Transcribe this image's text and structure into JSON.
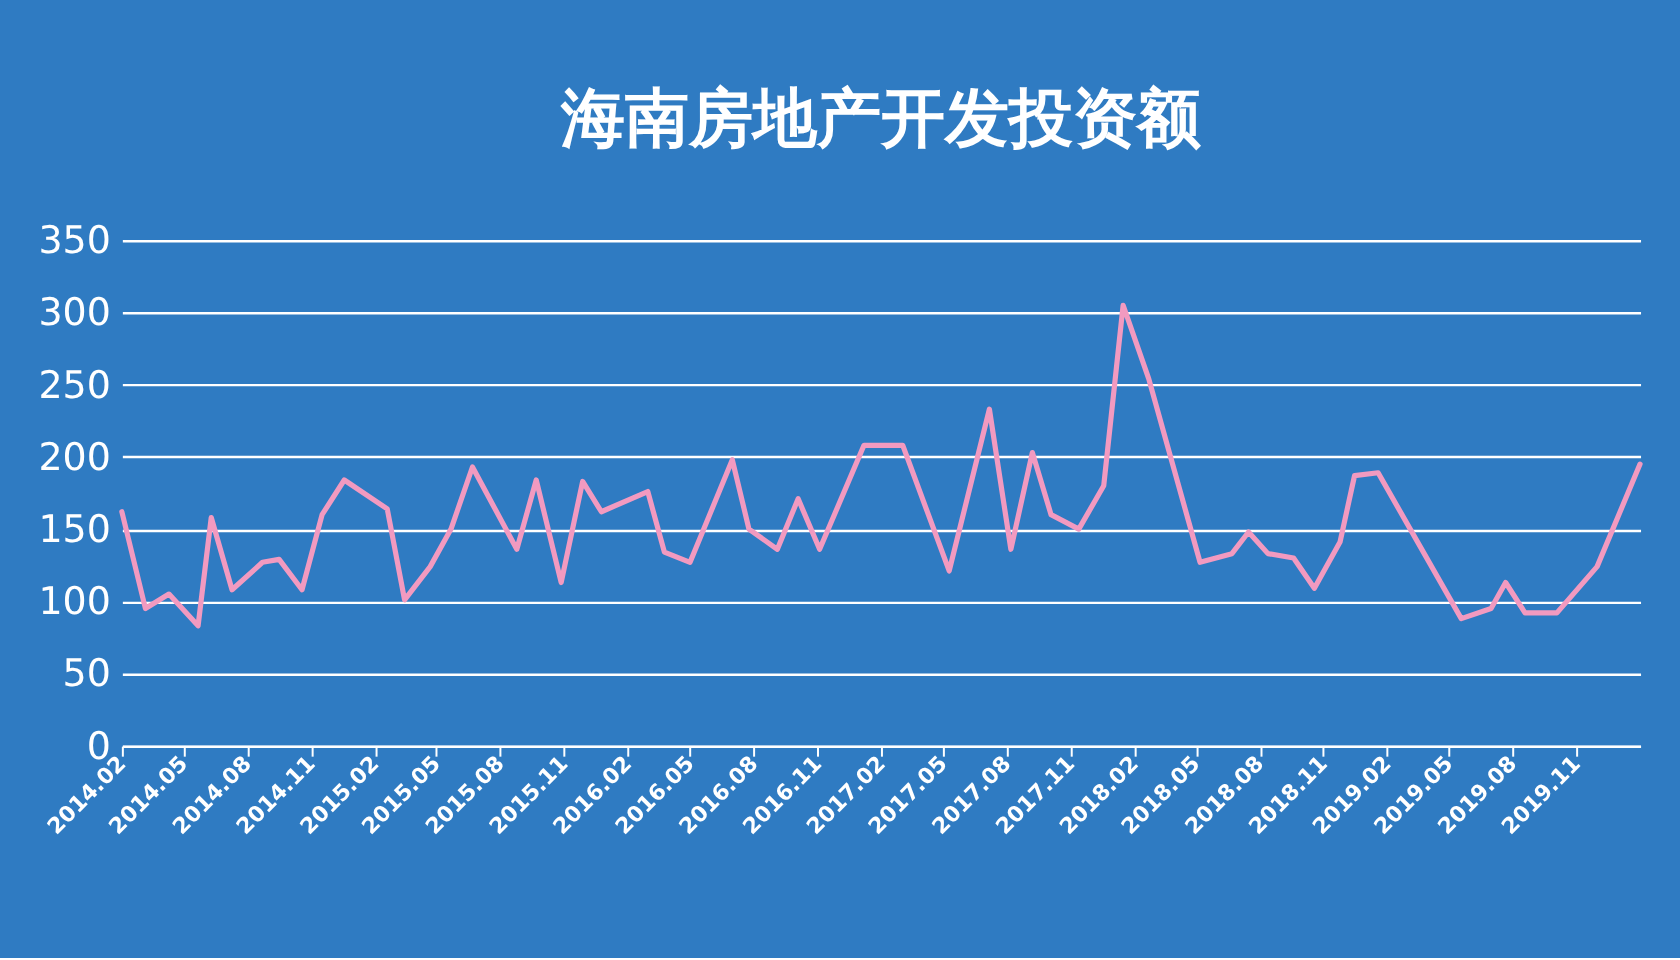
{
  "chart_data": {
    "type": "line",
    "title": "海南房地产开发投资额",
    "x": [
      "2014-02-01",
      "2014-03-07",
      "2014-04-10",
      "2014-05-22",
      "2014-06-10",
      "2014-07-10",
      "2014-08-23",
      "2014-09-16",
      "2014-10-19",
      "2014-11-17",
      "2014-12-19",
      "2015-02-19",
      "2015-03-16",
      "2015-04-22",
      "2015-05-22",
      "2015-06-22",
      "2015-08-25",
      "2015-09-22",
      "2015-10-28",
      "2015-11-28",
      "2015-12-25",
      "2016-03-01",
      "2016-03-25",
      "2016-05-01",
      "2016-07-01",
      "2016-07-25",
      "2016-09-04",
      "2016-10-04",
      "2016-11-04",
      "2017-01-07",
      "2017-03-04",
      "2017-05-10",
      "2017-07-07",
      "2017-08-07",
      "2017-09-07",
      "2017-10-04",
      "2017-11-13",
      "2017-12-19",
      "2018-01-16",
      "2018-02-22",
      "2018-05-07",
      "2018-06-22",
      "2018-07-16",
      "2018-08-13",
      "2018-09-19",
      "2018-10-19",
      "2018-11-25",
      "2018-12-16",
      "2019-01-19",
      "2019-05-19",
      "2019-07-01",
      "2019-07-22",
      "2019-08-19",
      "2019-10-04",
      "2019-12-01",
      "2020-02-01"
    ],
    "series": [
      {
        "color": "#f29ac0",
        "values": [
          162,
          95,
          105,
          83,
          158,
          108,
          127,
          129,
          108,
          160,
          184,
          164,
          101,
          124,
          150,
          193,
          136,
          184,
          113,
          183,
          162,
          176,
          134,
          127,
          198,
          150,
          136,
          171,
          136,
          208,
          208,
          121,
          233,
          136,
          203,
          160,
          150,
          180,
          305,
          254,
          127,
          133,
          148,
          133,
          130,
          109,
          141,
          187,
          189,
          88,
          95,
          113,
          92,
          92,
          124,
          195
        ]
      }
    ],
    "xlim": [
      "2014-02-01",
      "2020-02-01"
    ],
    "xticks": [
      {
        "value": "2014-02-01",
        "label": "2014.02"
      },
      {
        "value": "2014-05-01",
        "label": "2014.05"
      },
      {
        "value": "2014-08-01",
        "label": "2014.08"
      },
      {
        "value": "2014-11-01",
        "label": "2014.11"
      },
      {
        "value": "2015-02-01",
        "label": "2015.02"
      },
      {
        "value": "2015-05-01",
        "label": "2015.05"
      },
      {
        "value": "2015-08-01",
        "label": "2015.08"
      },
      {
        "value": "2015-11-01",
        "label": "2015.11"
      },
      {
        "value": "2016-02-01",
        "label": "2016.02"
      },
      {
        "value": "2016-05-01",
        "label": "2016.05"
      },
      {
        "value": "2016-08-01",
        "label": "2016.08"
      },
      {
        "value": "2016-11-01",
        "label": "2016.11"
      },
      {
        "value": "2017-02-01",
        "label": "2017.02"
      },
      {
        "value": "2017-05-01",
        "label": "2017.05"
      },
      {
        "value": "2017-08-01",
        "label": "2017.08"
      },
      {
        "value": "2017-11-01",
        "label": "2017.11"
      },
      {
        "value": "2018-02-01",
        "label": "2018.02"
      },
      {
        "value": "2018-05-01",
        "label": "2018.05"
      },
      {
        "value": "2018-08-01",
        "label": "2018.08"
      },
      {
        "value": "2018-11-01",
        "label": "2018.11"
      },
      {
        "value": "2019-02-01",
        "label": "2019.02"
      },
      {
        "value": "2019-05-01",
        "label": "2019.05"
      },
      {
        "value": "2019-08-01",
        "label": "2019.08"
      },
      {
        "value": "2019-11-01",
        "label": "2019.11"
      }
    ],
    "ylim": [
      0,
      350
    ],
    "yticks": [
      0,
      50,
      100,
      150,
      200,
      250,
      300,
      350
    ],
    "grid": "y",
    "marker": "none",
    "line_style": "solid"
  }
}
